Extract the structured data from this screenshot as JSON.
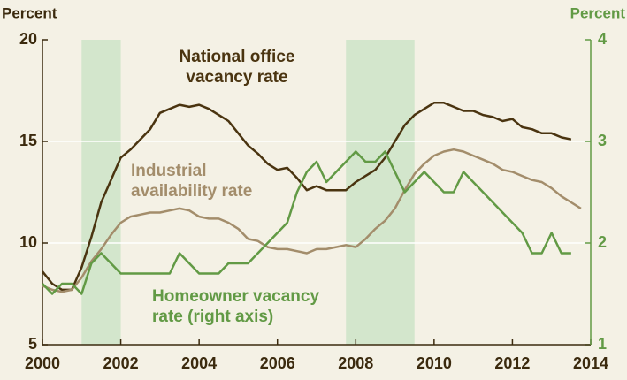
{
  "chart_data": {
    "type": "line",
    "y_label": "Percent",
    "y2_label": "Percent",
    "xlim": [
      2000,
      2014
    ],
    "xticks": [
      2000,
      2002,
      2004,
      2006,
      2008,
      2010,
      2012,
      2014
    ],
    "ylim": [
      5,
      20
    ],
    "yticks": [
      5,
      10,
      15,
      20
    ],
    "y2lim": [
      1,
      4
    ],
    "y2ticks": [
      1,
      2,
      3,
      4
    ],
    "grid": true,
    "shaded_periods": [
      [
        2001,
        2002
      ],
      [
        2007.75,
        2009.5
      ]
    ],
    "shade_color": "#d3e6cc",
    "annotations": [
      [
        "National office",
        "vacancy rate"
      ],
      [
        "Industrial",
        "availability rate"
      ],
      [
        "Homeowner vacancy",
        "rate (right axis)"
      ]
    ],
    "series": [
      {
        "name": "National office vacancy rate",
        "color": "#4a3410",
        "x": [
          2000,
          2000.25,
          2000.5,
          2000.75,
          2001,
          2001.25,
          2001.5,
          2001.75,
          2002,
          2002.25,
          2002.5,
          2002.75,
          2003,
          2003.25,
          2003.5,
          2003.75,
          2004,
          2004.25,
          2004.5,
          2004.75,
          2005,
          2005.25,
          2005.5,
          2005.75,
          2006,
          2006.25,
          2006.5,
          2006.75,
          2007,
          2007.25,
          2007.5,
          2007.75,
          2008,
          2008.25,
          2008.5,
          2008.75,
          2009,
          2009.25,
          2009.5,
          2009.75,
          2010,
          2010.25,
          2010.5,
          2010.75,
          2011,
          2011.25,
          2011.5,
          2011.75,
          2012,
          2012.25,
          2012.5,
          2012.75,
          2013,
          2013.25,
          2013.5
        ],
        "values": [
          8.6,
          8.0,
          7.7,
          7.7,
          8.8,
          10.3,
          12.0,
          13.1,
          14.2,
          14.6,
          15.1,
          15.6,
          16.4,
          16.6,
          16.8,
          16.7,
          16.8,
          16.6,
          16.3,
          16.0,
          15.4,
          14.8,
          14.4,
          13.9,
          13.6,
          13.7,
          13.2,
          12.6,
          12.8,
          12.6,
          12.6,
          12.6,
          13.0,
          13.3,
          13.6,
          14.2,
          15.0,
          15.8,
          16.3,
          16.6,
          16.9,
          16.9,
          16.7,
          16.5,
          16.5,
          16.3,
          16.2,
          16.0,
          16.1,
          15.7,
          15.6,
          15.4,
          15.4,
          15.2,
          15.1
        ]
      },
      {
        "name": "Industrial availability rate",
        "color": "#a38d6b",
        "x": [
          2000,
          2000.25,
          2000.5,
          2000.75,
          2001,
          2001.25,
          2001.5,
          2001.75,
          2002,
          2002.25,
          2002.5,
          2002.75,
          2003,
          2003.25,
          2003.5,
          2003.75,
          2004,
          2004.25,
          2004.5,
          2004.75,
          2005,
          2005.25,
          2005.5,
          2005.75,
          2006,
          2006.25,
          2006.5,
          2006.75,
          2007,
          2007.25,
          2007.5,
          2007.75,
          2008,
          2008.25,
          2008.5,
          2008.75,
          2009,
          2009.25,
          2009.5,
          2009.75,
          2010,
          2010.25,
          2010.5,
          2010.75,
          2011,
          2011.25,
          2011.5,
          2011.75,
          2012,
          2012.25,
          2012.5,
          2012.75,
          2013,
          2013.25,
          2013.5,
          2013.75
        ],
        "values": [
          7.9,
          7.7,
          7.6,
          7.7,
          8.3,
          9.1,
          9.7,
          10.4,
          11.0,
          11.3,
          11.4,
          11.5,
          11.5,
          11.6,
          11.7,
          11.6,
          11.3,
          11.2,
          11.2,
          11.0,
          10.7,
          10.2,
          10.1,
          9.8,
          9.7,
          9.7,
          9.6,
          9.5,
          9.7,
          9.7,
          9.8,
          9.9,
          9.8,
          10.2,
          10.7,
          11.1,
          11.7,
          12.6,
          13.4,
          13.9,
          14.3,
          14.5,
          14.6,
          14.5,
          14.3,
          14.1,
          13.9,
          13.6,
          13.5,
          13.3,
          13.1,
          13.0,
          12.7,
          12.3,
          12.0,
          11.7
        ]
      },
      {
        "name": "Homeowner vacancy rate (right axis)",
        "color": "#629a45",
        "axis": "y2",
        "x": [
          2000,
          2000.25,
          2000.5,
          2000.75,
          2001,
          2001.25,
          2001.5,
          2001.75,
          2002,
          2002.25,
          2002.5,
          2002.75,
          2003,
          2003.25,
          2003.5,
          2003.75,
          2004,
          2004.25,
          2004.5,
          2004.75,
          2005,
          2005.25,
          2005.5,
          2005.75,
          2006,
          2006.25,
          2006.5,
          2006.75,
          2007,
          2007.25,
          2007.5,
          2007.75,
          2008,
          2008.25,
          2008.5,
          2008.75,
          2009,
          2009.25,
          2009.5,
          2009.75,
          2010,
          2010.25,
          2010.5,
          2010.75,
          2011,
          2011.25,
          2011.5,
          2011.75,
          2012,
          2012.25,
          2012.5,
          2012.75,
          2013,
          2013.25,
          2013.5
        ],
        "values": [
          1.6,
          1.5,
          1.6,
          1.6,
          1.5,
          1.8,
          1.9,
          1.8,
          1.7,
          1.7,
          1.7,
          1.7,
          1.7,
          1.7,
          1.9,
          1.8,
          1.7,
          1.7,
          1.7,
          1.8,
          1.8,
          1.8,
          1.9,
          2.0,
          2.1,
          2.2,
          2.5,
          2.7,
          2.8,
          2.6,
          2.7,
          2.8,
          2.9,
          2.8,
          2.8,
          2.9,
          2.7,
          2.5,
          2.6,
          2.7,
          2.6,
          2.5,
          2.5,
          2.7,
          2.6,
          2.5,
          2.4,
          2.3,
          2.2,
          2.1,
          1.9,
          1.9,
          2.1,
          1.9,
          1.9
        ]
      }
    ]
  }
}
